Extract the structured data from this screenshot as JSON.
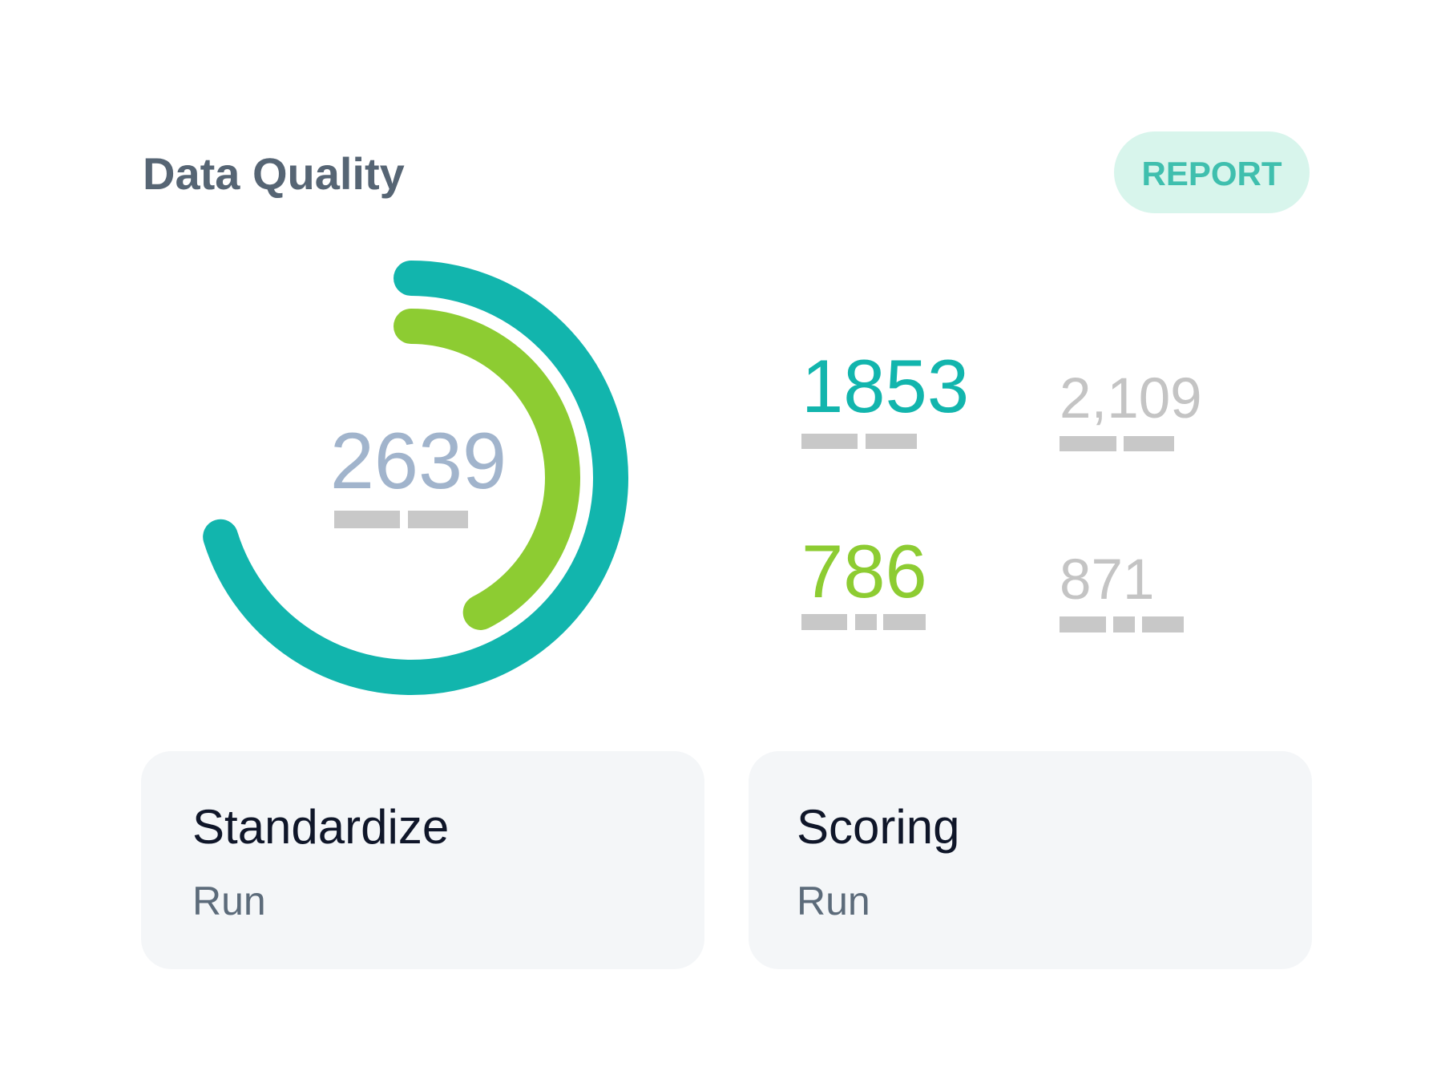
{
  "header": {
    "title": "Data Quality",
    "button": "REPORT"
  },
  "summary": {
    "total": 2639,
    "primary": 1853,
    "primary_of": "2,109",
    "secondary": 786,
    "secondary_of": 871
  },
  "cards": [
    {
      "title": "Standardize",
      "action": "Run"
    },
    {
      "title": "Scoring",
      "action": "Run"
    }
  ]
}
